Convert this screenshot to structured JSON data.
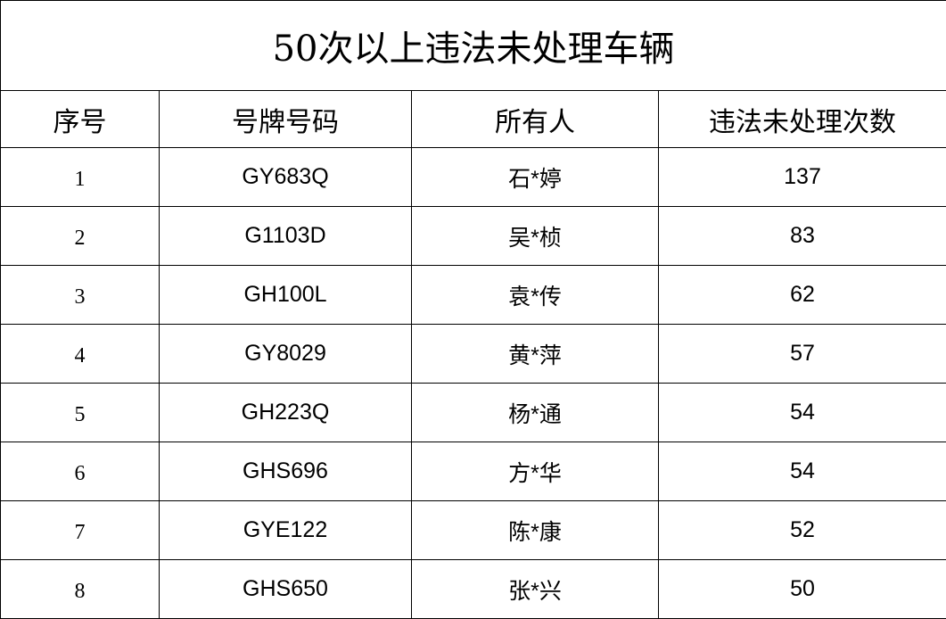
{
  "title": "50次以上违法未处理车辆",
  "headers": [
    "序号",
    "号牌号码",
    "所有人",
    "违法未处理次数"
  ],
  "rows": [
    {
      "index": "1",
      "plate": "GY683Q",
      "owner": "石*婷",
      "count": "137"
    },
    {
      "index": "2",
      "plate": "G1103D",
      "owner": "吴*桢",
      "count": "83"
    },
    {
      "index": "3",
      "plate": "GH100L",
      "owner": "袁*传",
      "count": "62"
    },
    {
      "index": "4",
      "plate": "GY8029",
      "owner": "黄*萍",
      "count": "57"
    },
    {
      "index": "5",
      "plate": "GH223Q",
      "owner": "杨*通",
      "count": "54"
    },
    {
      "index": "6",
      "plate": "GHS696",
      "owner": "方*华",
      "count": "54"
    },
    {
      "index": "7",
      "plate": "GYE122",
      "owner": "陈*康",
      "count": "52"
    },
    {
      "index": "8",
      "plate": "GHS650",
      "owner": "张*兴",
      "count": "50"
    }
  ]
}
